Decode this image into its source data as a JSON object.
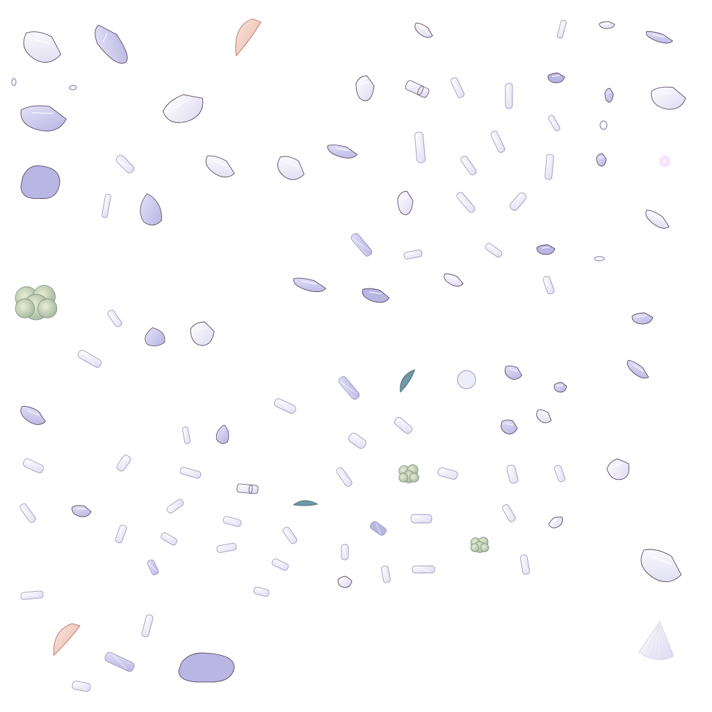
{
  "sheet": {
    "name": "sprite-atlas-petals",
    "background": "#ffffff",
    "palette": {
      "lavender": "#c9c7ec",
      "lavender_deep": "#b9b6e4",
      "pale_white": "#eeeef8",
      "peach": "#f1cbbf",
      "moss": "#c7d3b0",
      "teal_leaf": "#6f97a4",
      "outline": "#5a4560",
      "pink_glow": "#f3e6fb"
    },
    "sprite_kinds": [
      "petal-shard",
      "crystal-shard",
      "peach-petal",
      "moss-tuft",
      "leaf",
      "orb",
      "rolled-scroll",
      "glow-spark",
      "fan-petal"
    ],
    "visible_text": []
  }
}
